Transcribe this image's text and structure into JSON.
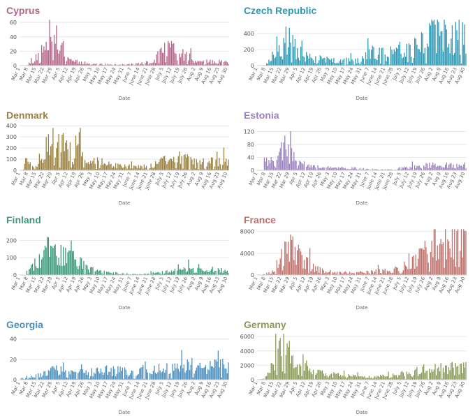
{
  "x_axis_label": "Date",
  "date_ticks": [
    "Mar 1",
    "Mar 8",
    "Mar 15",
    "Mar 22",
    "Mar 29",
    "Apr 5",
    "Apr 12",
    "Apr 19",
    "Apr 26",
    "May 3",
    "May 10",
    "May 17",
    "May 24",
    "May 31",
    "June 7",
    "June 14",
    "June 21",
    "June 28",
    "July 5",
    "July 12",
    "July 19",
    "July 26",
    "Aug 2",
    "Aug 9",
    "Aug 16",
    "Aug 23",
    "Aug 30"
  ],
  "chart_data": [
    {
      "type": "bar",
      "title": "Cyprus",
      "color": "#b5668b",
      "xlabel": "Date",
      "ylim": [
        0,
        65
      ],
      "yticks": [
        0,
        20,
        40,
        60
      ],
      "profile": [
        [
          0,
          0
        ],
        [
          6,
          0
        ],
        [
          7,
          5
        ],
        [
          13,
          10
        ],
        [
          17,
          18
        ],
        [
          21,
          28
        ],
        [
          24,
          35
        ],
        [
          27,
          48
        ],
        [
          30,
          36
        ],
        [
          34,
          34
        ],
        [
          38,
          25
        ],
        [
          41,
          14
        ],
        [
          45,
          9
        ],
        [
          50,
          6
        ],
        [
          55,
          4
        ],
        [
          60,
          3
        ],
        [
          70,
          2
        ],
        [
          80,
          1.5
        ],
        [
          95,
          1.5
        ],
        [
          105,
          3
        ],
        [
          112,
          4
        ],
        [
          117,
          5
        ],
        [
          120,
          10
        ],
        [
          124,
          24
        ],
        [
          132,
          22
        ],
        [
          140,
          20
        ],
        [
          150,
          18
        ],
        [
          153,
          5
        ]
      ],
      "seed": 11
    },
    {
      "type": "bar",
      "title": "Czech Republic",
      "color": "#2a9ab5",
      "xlabel": "Date",
      "ylim": [
        0,
        580
      ],
      "yticks": [
        0,
        200,
        400
      ],
      "profile": [
        [
          0,
          0
        ],
        [
          7,
          5
        ],
        [
          12,
          80
        ],
        [
          17,
          230
        ],
        [
          22,
          320
        ],
        [
          27,
          300
        ],
        [
          32,
          230
        ],
        [
          37,
          160
        ],
        [
          42,
          110
        ],
        [
          50,
          85
        ],
        [
          60,
          70
        ],
        [
          70,
          65
        ],
        [
          80,
          60
        ],
        [
          90,
          70
        ],
        [
          95,
          120
        ],
        [
          98,
          180
        ],
        [
          102,
          160
        ],
        [
          108,
          140
        ],
        [
          115,
          150
        ],
        [
          122,
          200
        ],
        [
          130,
          240
        ],
        [
          137,
          260
        ],
        [
          143,
          280
        ],
        [
          150,
          340
        ],
        [
          155,
          390
        ],
        [
          158,
          350
        ],
        [
          160,
          350
        ]
      ],
      "seed": 23
    },
    {
      "type": "bar",
      "title": "Denmark",
      "color": "#9a803e",
      "xlabel": "Date",
      "ylim": [
        0,
        420
      ],
      "yticks": [
        0,
        100,
        200,
        300,
        400
      ],
      "profile": [
        [
          0,
          0
        ],
        [
          3,
          5
        ],
        [
          6,
          120
        ],
        [
          10,
          20
        ],
        [
          15,
          60
        ],
        [
          20,
          140
        ],
        [
          25,
          220
        ],
        [
          30,
          270
        ],
        [
          35,
          230
        ],
        [
          40,
          200
        ],
        [
          45,
          180
        ],
        [
          52,
          140
        ],
        [
          60,
          110
        ],
        [
          70,
          75
        ],
        [
          80,
          50
        ],
        [
          90,
          40
        ],
        [
          100,
          30
        ],
        [
          108,
          30
        ],
        [
          115,
          45
        ],
        [
          120,
          60
        ],
        [
          125,
          85
        ],
        [
          132,
          100
        ],
        [
          140,
          110
        ],
        [
          146,
          95
        ],
        [
          151,
          80
        ],
        [
          155,
          75
        ]
      ],
      "seed": 37
    },
    {
      "type": "bar",
      "title": "Estonia",
      "color": "#9a80c0",
      "xlabel": "Date",
      "ylim": [
        0,
        145
      ],
      "yticks": [
        0,
        40,
        80,
        120
      ],
      "profile": [
        [
          0,
          0
        ],
        [
          5,
          0
        ],
        [
          6,
          20
        ],
        [
          10,
          35
        ],
        [
          15,
          25
        ],
        [
          20,
          55
        ],
        [
          24,
          80
        ],
        [
          28,
          55
        ],
        [
          33,
          35
        ],
        [
          38,
          22
        ],
        [
          43,
          16
        ],
        [
          50,
          10
        ],
        [
          60,
          8
        ],
        [
          70,
          8
        ],
        [
          80,
          7
        ],
        [
          90,
          5
        ],
        [
          100,
          3
        ],
        [
          110,
          2
        ],
        [
          120,
          3
        ],
        [
          130,
          8
        ],
        [
          140,
          12
        ],
        [
          150,
          16
        ],
        [
          155,
          15
        ]
      ],
      "seed": 41
    },
    {
      "type": "bar",
      "title": "Finland",
      "color": "#3a9a78",
      "xlabel": "Date",
      "ylim": [
        0,
        270
      ],
      "yticks": [
        0,
        100,
        200
      ],
      "profile": [
        [
          0,
          0
        ],
        [
          5,
          0
        ],
        [
          6,
          40
        ],
        [
          10,
          60
        ],
        [
          15,
          80
        ],
        [
          20,
          110
        ],
        [
          25,
          140
        ],
        [
          30,
          130
        ],
        [
          35,
          120
        ],
        [
          40,
          110
        ],
        [
          45,
          100
        ],
        [
          50,
          80
        ],
        [
          55,
          55
        ],
        [
          60,
          40
        ],
        [
          65,
          25
        ],
        [
          70,
          18
        ],
        [
          80,
          12
        ],
        [
          90,
          8
        ],
        [
          100,
          5
        ],
        [
          108,
          4
        ],
        [
          115,
          10
        ],
        [
          125,
          14
        ],
        [
          135,
          22
        ],
        [
          145,
          30
        ],
        [
          152,
          35
        ],
        [
          156,
          30
        ]
      ],
      "seed": 53
    },
    {
      "type": "bar",
      "title": "France",
      "color": "#c0706a",
      "xlabel": "Date",
      "ylim": [
        0,
        8600
      ],
      "yticks": [
        0,
        4000,
        8000
      ],
      "profile": [
        [
          0,
          0
        ],
        [
          5,
          100
        ],
        [
          10,
          400
        ],
        [
          15,
          1400
        ],
        [
          20,
          3000
        ],
        [
          25,
          4200
        ],
        [
          30,
          4800
        ],
        [
          35,
          3600
        ],
        [
          40,
          2600
        ],
        [
          45,
          1900
        ],
        [
          50,
          1300
        ],
        [
          55,
          900
        ],
        [
          60,
          700
        ],
        [
          70,
          500
        ],
        [
          80,
          400
        ],
        [
          90,
          450
        ],
        [
          100,
          600
        ],
        [
          110,
          800
        ],
        [
          120,
          1100
        ],
        [
          127,
          1400
        ],
        [
          133,
          2000
        ],
        [
          139,
          2800
        ],
        [
          145,
          3500
        ],
        [
          150,
          4800
        ],
        [
          154,
          6000
        ],
        [
          158,
          6600
        ]
      ],
      "seed": 67
    },
    {
      "type": "bar",
      "title": "Georgia",
      "color": "#4a8ebd",
      "xlabel": "Date",
      "ylim": [
        0,
        46
      ],
      "yticks": [
        0,
        20,
        40
      ],
      "profile": [
        [
          0,
          0
        ],
        [
          3,
          2
        ],
        [
          10,
          3
        ],
        [
          15,
          4
        ],
        [
          20,
          6
        ],
        [
          25,
          8
        ],
        [
          30,
          10
        ],
        [
          35,
          11
        ],
        [
          40,
          10
        ],
        [
          50,
          7
        ],
        [
          60,
          7
        ],
        [
          70,
          8
        ],
        [
          80,
          9
        ],
        [
          90,
          8
        ],
        [
          100,
          7
        ],
        [
          110,
          8
        ],
        [
          120,
          9
        ],
        [
          130,
          10
        ],
        [
          140,
          12
        ],
        [
          150,
          13
        ],
        [
          156,
          14
        ]
      ],
      "seed": 79
    },
    {
      "type": "bar",
      "title": "Germany",
      "color": "#8a9a55",
      "xlabel": "Date",
      "ylim": [
        0,
        6500
      ],
      "yticks": [
        0,
        2000,
        4000,
        6000
      ],
      "profile": [
        [
          0,
          0
        ],
        [
          5,
          100
        ],
        [
          10,
          800
        ],
        [
          15,
          2800
        ],
        [
          19,
          4200
        ],
        [
          22,
          4800
        ],
        [
          25,
          4600
        ],
        [
          28,
          4200
        ],
        [
          32,
          3600
        ],
        [
          36,
          3000
        ],
        [
          40,
          2300
        ],
        [
          45,
          1600
        ],
        [
          50,
          1100
        ],
        [
          55,
          850
        ],
        [
          60,
          750
        ],
        [
          70,
          600
        ],
        [
          80,
          500
        ],
        [
          90,
          450
        ],
        [
          100,
          400
        ],
        [
          108,
          450
        ],
        [
          115,
          500
        ],
        [
          120,
          600
        ],
        [
          125,
          700
        ],
        [
          130,
          800
        ],
        [
          135,
          900
        ],
        [
          140,
          1100
        ],
        [
          145,
          1300
        ],
        [
          150,
          1500
        ],
        [
          155,
          1500
        ]
      ],
      "seed": 89
    }
  ]
}
